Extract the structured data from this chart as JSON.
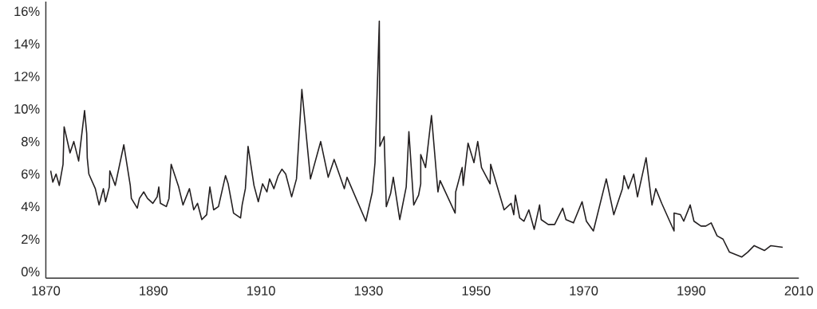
{
  "chart_data": {
    "type": "line",
    "x": [
      1870.9,
      1871.3,
      1871.9,
      1872.5,
      1873.2,
      1873.4,
      1874.5,
      1875.2,
      1876.1,
      1877.2,
      1877.6,
      1877.7,
      1878.0,
      1879.2,
      1879.9,
      1880.7,
      1881.1,
      1881.8,
      1881.9,
      1882.9,
      1884.5,
      1885.7,
      1885.9,
      1887.0,
      1887.4,
      1888.2,
      1888.9,
      1889.9,
      1890.7,
      1891.0,
      1891.3,
      1892.4,
      1892.9,
      1893.3,
      1894.7,
      1895.5,
      1896.7,
      1897.5,
      1898.2,
      1899.0,
      1899.9,
      1900.5,
      1901.2,
      1902.1,
      1903.4,
      1903.9,
      1904.9,
      1906.2,
      1906.5,
      1907.1,
      1907.6,
      1908.7,
      1909.5,
      1910.3,
      1911.1,
      1911.6,
      1912.4,
      1913.2,
      1913.9,
      1914.6,
      1915.7,
      1916.6,
      1917.6,
      1919.2,
      1921.1,
      1922.5,
      1923.6,
      1925.5,
      1926.0,
      1929.5,
      1930.7,
      1931.2,
      1932.0,
      1932.1,
      1932.9,
      1933.3,
      1934.1,
      1934.6,
      1935.8,
      1937.0,
      1937.5,
      1938.4,
      1939.3,
      1939.7,
      1939.7,
      1940.6,
      1941.7,
      1942.9,
      1943.3,
      1946.1,
      1946.2,
      1947.4,
      1947.6,
      1948.5,
      1949.6,
      1950.3,
      1951.0,
      1952.6,
      1952.7,
      1955.2,
      1956.5,
      1957.0,
      1957.3,
      1958.1,
      1958.9,
      1959.8,
      1960.8,
      1961.8,
      1962.1,
      1963.4,
      1964.6,
      1966.1,
      1966.7,
      1968.1,
      1969.7,
      1970.5,
      1971.8,
      1974.2,
      1975.6,
      1977.2,
      1977.5,
      1978.3,
      1979.3,
      1980.0,
      1981.6,
      1982.7,
      1983.4,
      1984.5,
      1986.8,
      1986.8,
      1988.0,
      1988.6,
      1989.8,
      1990.5,
      1991.8,
      1992.7,
      1993.7,
      1994.8,
      1995.9,
      1997.1,
      1999.4,
      2000.5,
      2001.7,
      2003.6,
      2004.8,
      2007.0
    ],
    "series": [
      {
        "color": "#231f20",
        "values": [
          6.2,
          5.5,
          6.0,
          5.3,
          6.6,
          8.9,
          7.3,
          8.0,
          6.8,
          9.9,
          8.5,
          7.0,
          6.0,
          5.1,
          4.1,
          5.1,
          4.3,
          5.2,
          6.2,
          5.3,
          7.8,
          5.3,
          4.5,
          3.9,
          4.5,
          4.9,
          4.5,
          4.2,
          4.6,
          5.2,
          4.2,
          4.0,
          4.5,
          6.6,
          5.2,
          4.1,
          5.1,
          3.8,
          4.2,
          3.2,
          3.5,
          5.2,
          3.8,
          4.0,
          5.9,
          5.4,
          3.6,
          3.3,
          4.1,
          5.1,
          7.7,
          5.3,
          4.3,
          5.4,
          4.9,
          5.7,
          5.1,
          5.9,
          6.3,
          6.0,
          4.6,
          5.7,
          11.2,
          5.7,
          8.0,
          5.8,
          6.9,
          5.1,
          5.8,
          3.1,
          4.9,
          6.7,
          15.4,
          7.7,
          8.3,
          4.0,
          4.8,
          5.8,
          3.2,
          5.2,
          8.6,
          4.1,
          4.7,
          5.4,
          7.2,
          6.4,
          9.6,
          4.9,
          5.6,
          3.6,
          4.9,
          6.4,
          5.3,
          7.9,
          6.7,
          8.0,
          6.4,
          5.4,
          6.6,
          3.8,
          4.2,
          3.5,
          4.7,
          3.3,
          3.1,
          3.8,
          2.6,
          4.1,
          3.2,
          2.9,
          2.9,
          3.9,
          3.2,
          3.0,
          4.3,
          3.1,
          2.5,
          5.7,
          3.5,
          5.1,
          5.9,
          5.1,
          6.0,
          4.6,
          7.0,
          4.1,
          5.1,
          4.2,
          2.5,
          3.6,
          3.5,
          3.1,
          4.1,
          3.1,
          2.8,
          2.8,
          3.0,
          2.2,
          2.0,
          1.2,
          0.9,
          1.2,
          1.6,
          1.3,
          1.6,
          1.5
        ]
      }
    ],
    "xlim": [
      1870,
      2010
    ],
    "ylim": [
      -0.4,
      16.6
    ],
    "xticks": [
      1870,
      1890,
      1910,
      1930,
      1950,
      1970,
      1990,
      2010
    ],
    "yticks": [
      {
        "value": 0,
        "label": "0%"
      },
      {
        "value": 2,
        "label": "2%"
      },
      {
        "value": 4,
        "label": "4%"
      },
      {
        "value": 6,
        "label": "6%"
      },
      {
        "value": 8,
        "label": "8%"
      },
      {
        "value": 10,
        "label": "10%"
      },
      {
        "value": 12,
        "label": "12%"
      },
      {
        "value": 14,
        "label": "14%"
      },
      {
        "value": 16,
        "label": "16%"
      }
    ],
    "grid": false,
    "legend": false,
    "marker": "none",
    "line_style": "solid"
  }
}
